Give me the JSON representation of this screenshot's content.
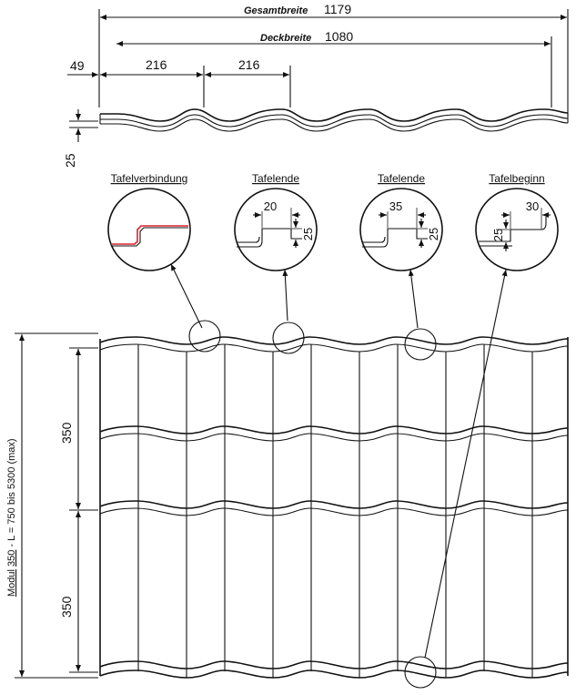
{
  "top_dimensions": {
    "overall_width_label": "Gesamtbreite",
    "overall_width_value": "1179",
    "cover_width_label": "Deckbreite",
    "cover_width_value": "1080",
    "edge_offset": "49",
    "wave_pitch_1": "216",
    "wave_pitch_2": "216",
    "profile_height": "25"
  },
  "details": [
    {
      "title": "Tafelverbindung"
    },
    {
      "title": "Tafelende",
      "width": "20",
      "height": "25"
    },
    {
      "title": "Tafelende",
      "width": "35",
      "height": "25"
    },
    {
      "title": "Tafelbeginn",
      "width": "30",
      "height": "25"
    }
  ],
  "side_dimensions": {
    "module_1": "350",
    "module_2": "350",
    "length_label_prefix": "Modul",
    "length_label_module": "350",
    "length_label_rest": " - L = 750 bis 5300 (max)"
  },
  "colors": {
    "line": "#111111",
    "seal": "#d9232d"
  }
}
